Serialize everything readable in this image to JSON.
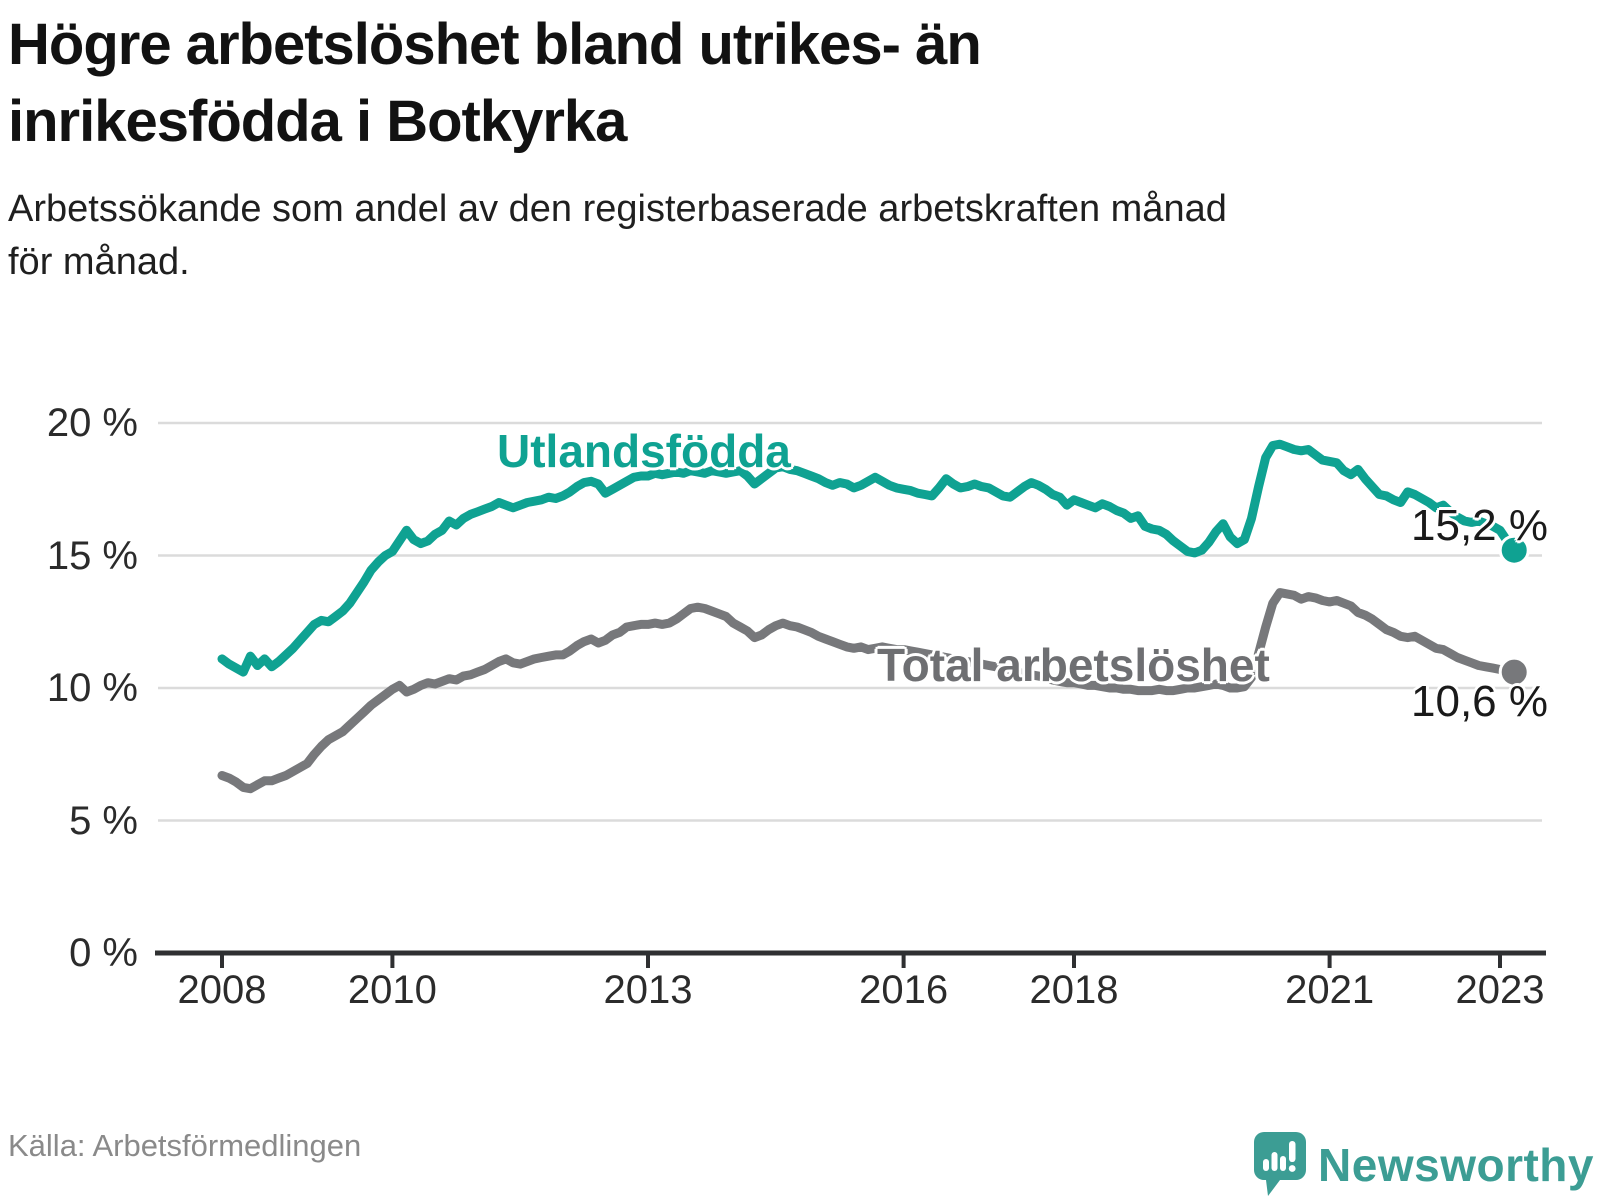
{
  "header": {
    "title_lines": [
      "Högre arbetslöshet bland utrikes- än",
      "inrikesfödda i Botkyrka"
    ],
    "subtitle_lines": [
      "Arbetssökande som andel av den registerbaserade arbetskraften månad",
      "för månad."
    ]
  },
  "axis": {
    "y_labels": [
      "20 %",
      "15 %",
      "10 %",
      "5 %",
      "0 %"
    ],
    "x_labels": [
      "2008",
      "2010",
      "2013",
      "2016",
      "2018",
      "2021",
      "2023"
    ]
  },
  "footer": {
    "source": "Källa: Arbetsförmedlingen",
    "brand": "Newsworthy"
  },
  "colors": {
    "teal": "#0fa292",
    "gray_line": "#77787b",
    "gray_label": "#6e6f72",
    "grid": "#dbdbdb",
    "axis": "#2f3032",
    "brand_teal": "#3c9d94"
  },
  "chart_data": {
    "type": "line",
    "title": "Högre arbetslöshet bland utrikes- än inrikesfödda i Botkyrka",
    "subtitle": "Arbetssökande som andel av den registerbaserade arbetskraften månad för månad.",
    "unit": "percent of registered labour force",
    "x_interval": "monthly",
    "x_start": "2008-01",
    "x_end": "2023-03",
    "x_ticks": [
      2008,
      2010,
      2013,
      2016,
      2018,
      2021,
      2023
    ],
    "y_ticks": [
      0,
      5,
      10,
      15,
      20
    ],
    "ylim": [
      0,
      21.5
    ],
    "grid": "horizontal",
    "legend_position": "inline-labels",
    "series": [
      {
        "name": "Utlandsfödda",
        "color": "#0fa292",
        "end_label": "15,2 %",
        "end_value": 15.2,
        "values": [
          11.1,
          10.9,
          10.75,
          10.6,
          11.2,
          10.85,
          11.1,
          10.8,
          11.0,
          11.25,
          11.5,
          11.8,
          12.1,
          12.4,
          12.55,
          12.5,
          12.7,
          12.9,
          13.2,
          13.6,
          14.0,
          14.45,
          14.75,
          15.0,
          15.15,
          15.55,
          15.95,
          15.6,
          15.45,
          15.55,
          15.8,
          15.95,
          16.3,
          16.15,
          16.4,
          16.55,
          16.65,
          16.75,
          16.85,
          17.0,
          16.9,
          16.8,
          16.9,
          17.0,
          17.05,
          17.1,
          17.2,
          17.15,
          17.25,
          17.4,
          17.6,
          17.75,
          17.8,
          17.7,
          17.35,
          17.5,
          17.65,
          17.8,
          17.95,
          18.0,
          18.0,
          18.1,
          18.05,
          18.1,
          18.15,
          18.1,
          18.2,
          18.15,
          18.1,
          18.2,
          18.15,
          18.1,
          18.15,
          18.2,
          18.0,
          17.7,
          17.9,
          18.1,
          18.3,
          18.35,
          18.25,
          18.2,
          18.1,
          18.0,
          17.9,
          17.75,
          17.65,
          17.75,
          17.7,
          17.55,
          17.65,
          17.8,
          17.95,
          17.8,
          17.65,
          17.55,
          17.5,
          17.45,
          17.35,
          17.3,
          17.25,
          17.55,
          17.9,
          17.7,
          17.55,
          17.6,
          17.7,
          17.6,
          17.55,
          17.4,
          17.25,
          17.2,
          17.4,
          17.6,
          17.75,
          17.65,
          17.5,
          17.3,
          17.2,
          16.9,
          17.1,
          17.0,
          16.9,
          16.8,
          16.95,
          16.85,
          16.7,
          16.6,
          16.4,
          16.5,
          16.1,
          16.0,
          15.95,
          15.8,
          15.55,
          15.35,
          15.15,
          15.1,
          15.2,
          15.5,
          15.9,
          16.2,
          15.7,
          15.45,
          15.6,
          16.4,
          17.6,
          18.7,
          19.15,
          19.2,
          19.1,
          19.0,
          18.95,
          19.0,
          18.8,
          18.6,
          18.55,
          18.5,
          18.2,
          18.05,
          18.25,
          17.9,
          17.6,
          17.3,
          17.25,
          17.1,
          17.0,
          17.4,
          17.3,
          17.15,
          17.0,
          16.8,
          16.9,
          16.65,
          16.45,
          16.3,
          16.25,
          16.3,
          16.2,
          16.1,
          15.95,
          15.55,
          15.2
        ]
      },
      {
        "name": "Total arbetslöshet",
        "color": "#77787b",
        "end_label": "10,6 %",
        "end_value": 10.6,
        "values": [
          6.7,
          6.6,
          6.45,
          6.25,
          6.2,
          6.35,
          6.5,
          6.5,
          6.6,
          6.7,
          6.85,
          7.0,
          7.15,
          7.5,
          7.8,
          8.05,
          8.2,
          8.35,
          8.6,
          8.85,
          9.1,
          9.35,
          9.55,
          9.75,
          9.95,
          10.1,
          9.85,
          9.95,
          10.1,
          10.2,
          10.15,
          10.25,
          10.35,
          10.3,
          10.45,
          10.5,
          10.6,
          10.7,
          10.85,
          11.0,
          11.1,
          10.95,
          10.9,
          11.0,
          11.1,
          11.15,
          11.2,
          11.25,
          11.25,
          11.4,
          11.6,
          11.75,
          11.85,
          11.7,
          11.8,
          12.0,
          12.1,
          12.3,
          12.35,
          12.4,
          12.4,
          12.45,
          12.4,
          12.45,
          12.6,
          12.8,
          13.0,
          13.05,
          13.0,
          12.9,
          12.8,
          12.7,
          12.45,
          12.3,
          12.15,
          11.9,
          12.0,
          12.2,
          12.35,
          12.45,
          12.35,
          12.3,
          12.2,
          12.1,
          11.95,
          11.85,
          11.75,
          11.65,
          11.55,
          11.5,
          11.55,
          11.45,
          11.5,
          11.55,
          11.5,
          11.45,
          11.45,
          11.4,
          11.35,
          11.3,
          11.25,
          11.2,
          11.15,
          11.1,
          11.05,
          11.0,
          10.95,
          10.9,
          10.85,
          10.8,
          10.75,
          10.7,
          10.6,
          10.55,
          10.5,
          10.45,
          10.4,
          10.3,
          10.25,
          10.2,
          10.2,
          10.15,
          10.1,
          10.1,
          10.05,
          10.0,
          10.0,
          9.95,
          9.95,
          9.9,
          9.9,
          9.9,
          9.95,
          9.9,
          9.9,
          9.95,
          10.0,
          10.0,
          10.05,
          10.1,
          10.15,
          10.1,
          10.0,
          10.0,
          10.05,
          10.4,
          11.3,
          12.3,
          13.2,
          13.6,
          13.55,
          13.5,
          13.35,
          13.45,
          13.4,
          13.3,
          13.25,
          13.3,
          13.2,
          13.1,
          12.85,
          12.75,
          12.6,
          12.4,
          12.2,
          12.1,
          11.95,
          11.9,
          11.95,
          11.8,
          11.65,
          11.5,
          11.45,
          11.3,
          11.15,
          11.05,
          10.95,
          10.85,
          10.8,
          10.75,
          10.7,
          10.65,
          10.6
        ]
      }
    ]
  }
}
